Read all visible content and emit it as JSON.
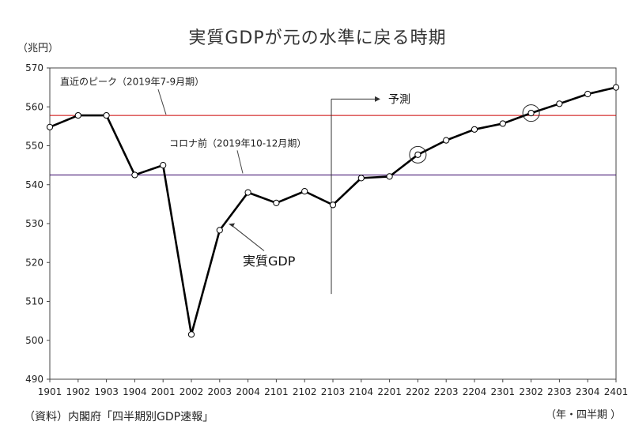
{
  "chart_data": {
    "type": "line",
    "title": "実質GDPが元の水準に戻る時期",
    "ylabel": "（兆円）",
    "xlabel": "（年・四半期 ）",
    "source": "（資料）内閣府「四半期別GDP速報」",
    "ylim": [
      490,
      570
    ],
    "yticks": [
      490,
      500,
      510,
      520,
      530,
      540,
      550,
      560,
      570
    ],
    "categories": [
      "1901",
      "1902",
      "1903",
      "1904",
      "2001",
      "2002",
      "2003",
      "2004",
      "2101",
      "2102",
      "2103",
      "2104",
      "2201",
      "2202",
      "2203",
      "2204",
      "2301",
      "2302",
      "2303",
      "2304",
      "2401"
    ],
    "series": [
      {
        "name": "実質GDP",
        "values": [
          554.8,
          557.8,
          557.8,
          542.5,
          545.0,
          501.5,
          528.3,
          538.0,
          535.3,
          538.3,
          534.8,
          541.7,
          542.1,
          547.7,
          551.4,
          554.2,
          555.7,
          558.4,
          560.8,
          563.3,
          565.0
        ]
      }
    ],
    "reference_lines": [
      {
        "label": "直近のピーク（2019年7-9月期）",
        "value": 557.8,
        "color": "#cc0000"
      },
      {
        "label": "コロナ前（2019年10-12月期）",
        "value": 542.5,
        "color": "#330066"
      }
    ],
    "forecast_label": "予測",
    "forecast_start_category": "2103",
    "series_label": "実質GDP",
    "highlighted_points": [
      "2202",
      "2302"
    ],
    "grid": false,
    "legend": "none"
  }
}
